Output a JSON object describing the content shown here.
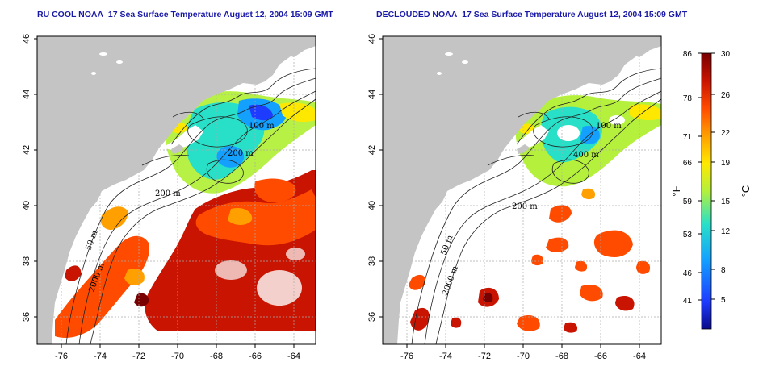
{
  "left_panel": {
    "title": "RU COOL NOAA–17 Sea Surface Temperature August 12, 2004 15:09 GMT"
  },
  "right_panel": {
    "title": "DECLOUDED NOAA–17 Sea Surface Temperature August 12, 2004 15:09 GMT"
  },
  "axes": {
    "lon_ticks": [
      "-76",
      "-74",
      "-72",
      "-70",
      "-68",
      "-66",
      "-64"
    ],
    "lat_ticks": [
      "36",
      "38",
      "40",
      "42",
      "44",
      "46"
    ]
  },
  "contours": [
    "100 m",
    "200 m",
    "200 m",
    "50 m",
    "2000 m",
    "100 m",
    "400 m",
    "200 m",
    "50 m",
    "2000 m"
  ],
  "colorbar": {
    "f_labels": [
      "86",
      "78",
      "71",
      "66",
      "59",
      "53",
      "46",
      "41"
    ],
    "c_labels": [
      "30",
      "26",
      "22",
      "19",
      "15",
      "12",
      "8",
      "5"
    ],
    "f_unit": "°F",
    "c_unit": "°C"
  },
  "colors": {
    "land": "#c4c4c4",
    "title": "#1a1aa8",
    "sst_scale": [
      "#0a0a8a",
      "#1e3cff",
      "#14a0ff",
      "#28e0c8",
      "#b4f03c",
      "#ffe800",
      "#ffa000",
      "#ff4b00",
      "#c81400",
      "#780000"
    ]
  }
}
